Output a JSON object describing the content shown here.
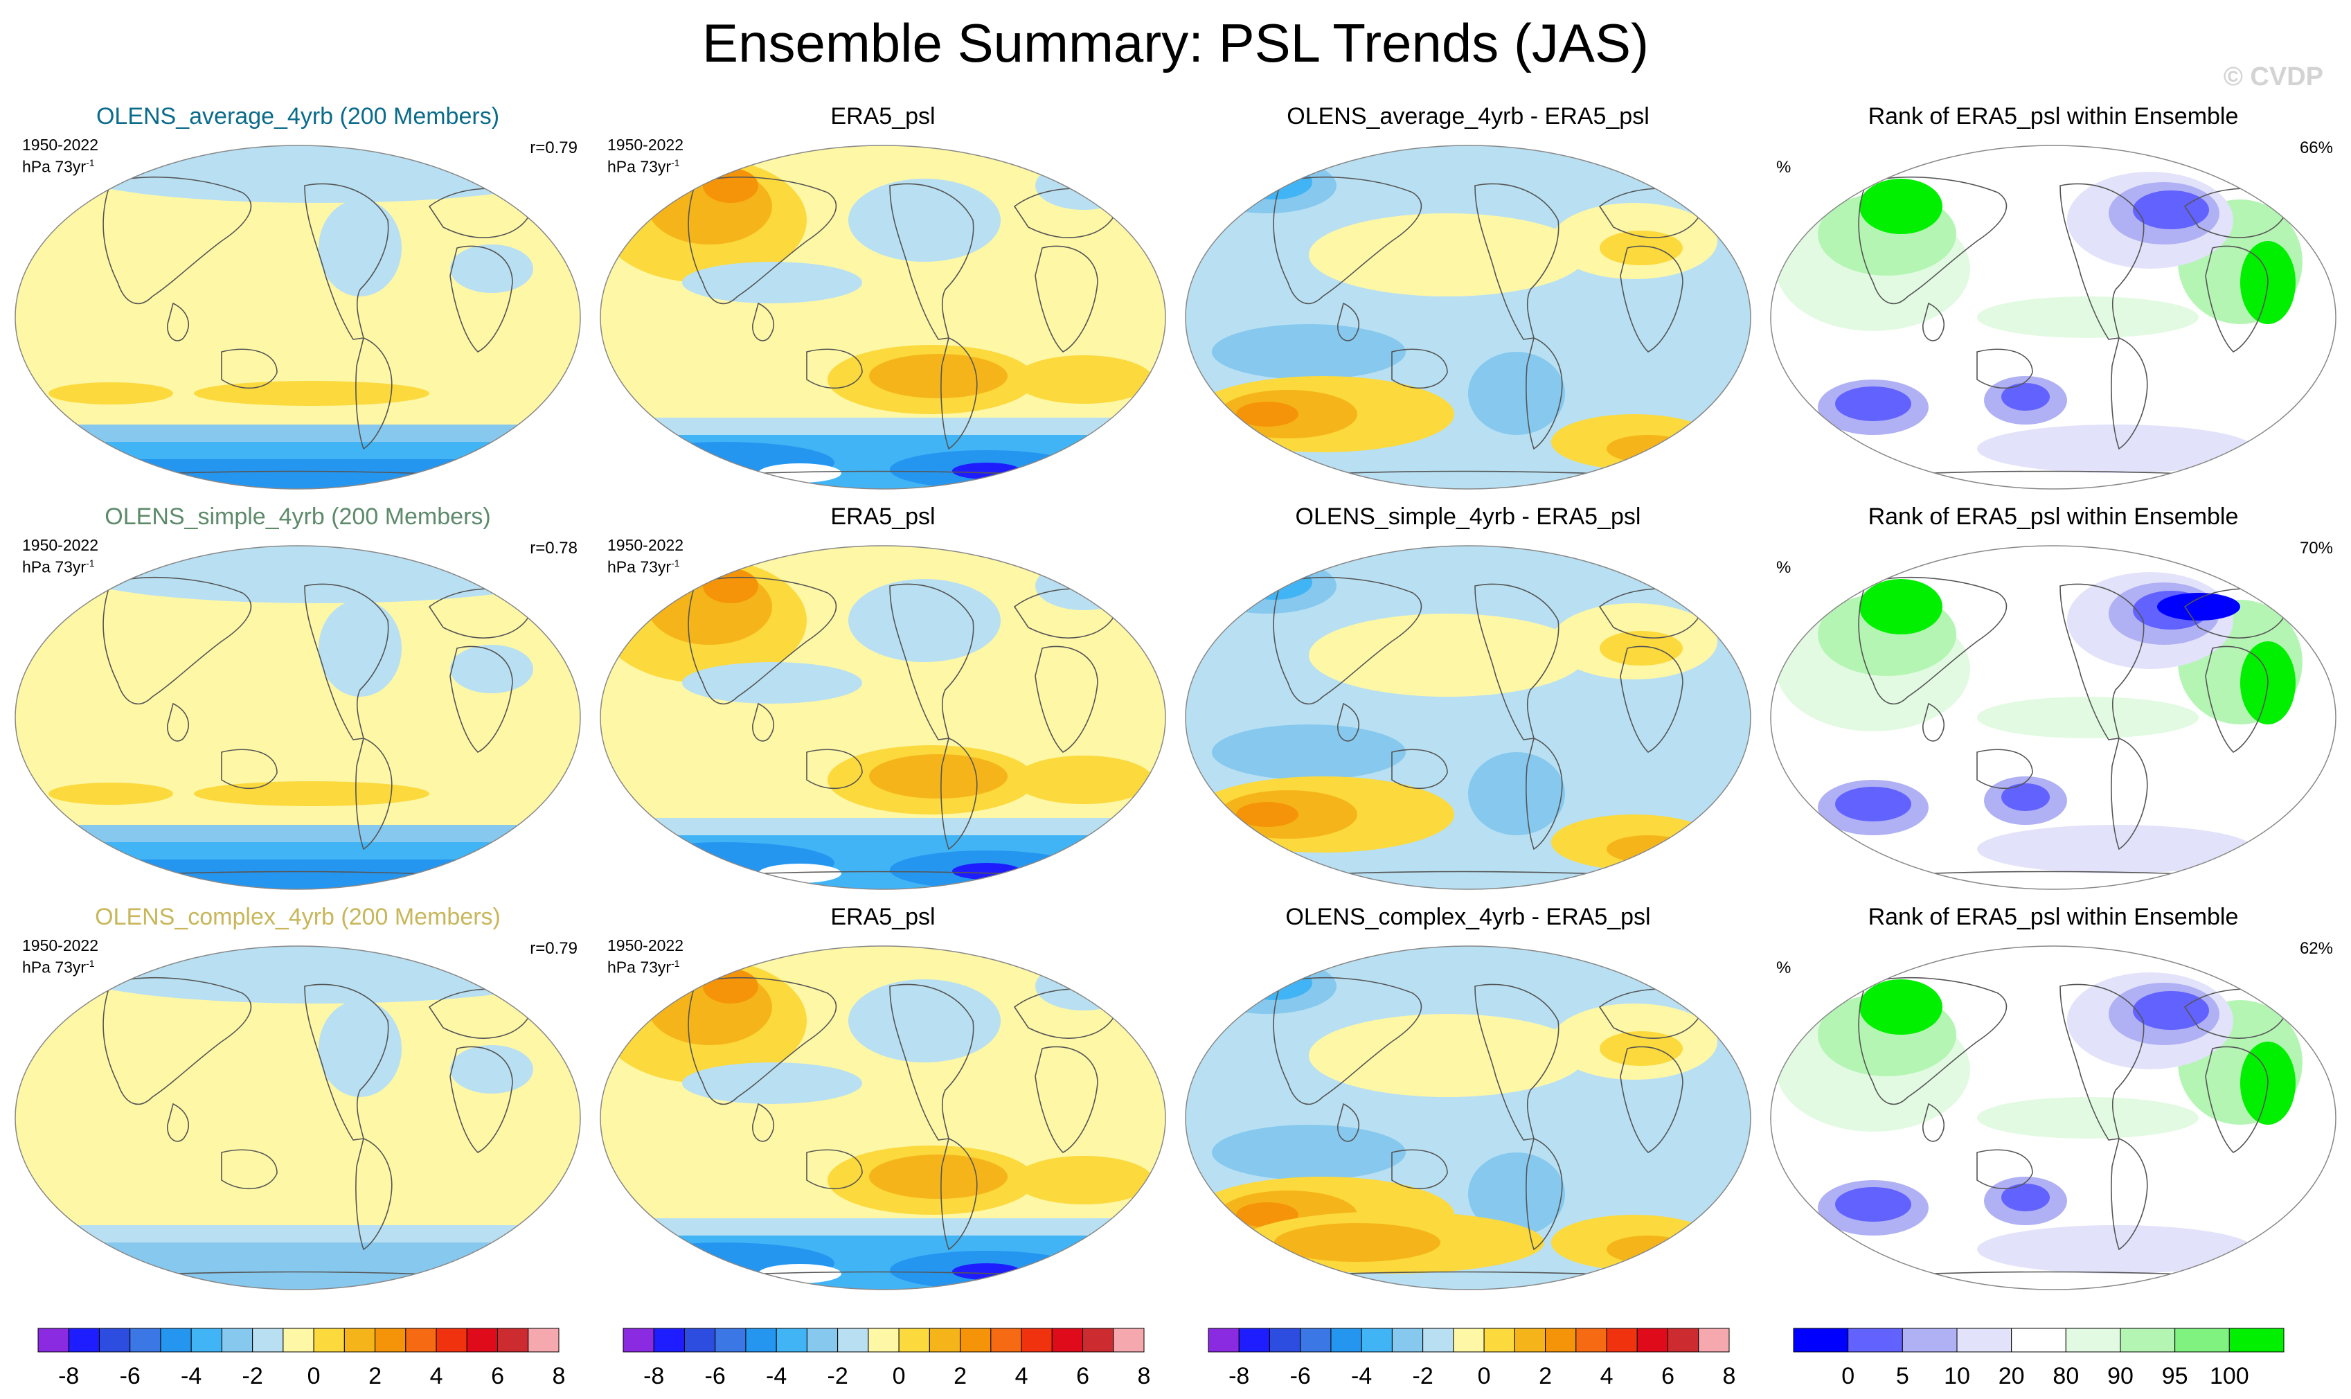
{
  "title": "Ensemble Summary: PSL Trends (JAS)",
  "copyright": "© CVDP",
  "colors": {
    "model1": "#0a6b8a",
    "model2": "#5d8a6a",
    "model3": "#c8b65a",
    "coast": "#555555"
  },
  "rows": [
    {
      "model_title": "OLENS_average_4yrb (200 Members)",
      "period": "1950-2022",
      "units": "hPa 73yr",
      "units_sup": "-1",
      "r": "r=0.79",
      "obs_title": "ERA5_psl",
      "diff_title": "OLENS_average_4yrb - ERA5_psl",
      "rank_title": "Rank of ERA5_psl within Ensemble",
      "rank_unit": "%",
      "rank_pct": "66%"
    },
    {
      "model_title": "OLENS_simple_4yrb (200 Members)",
      "period": "1950-2022",
      "units": "hPa 73yr",
      "units_sup": "-1",
      "r": "r=0.78",
      "obs_title": "ERA5_psl",
      "diff_title": "OLENS_simple_4yrb - ERA5_psl",
      "rank_title": "Rank of ERA5_psl within Ensemble",
      "rank_unit": "%",
      "rank_pct": "70%"
    },
    {
      "model_title": "OLENS_complex_4yrb (200 Members)",
      "period": "1950-2022",
      "units": "hPa 73yr",
      "units_sup": "-1",
      "r": "r=0.79",
      "obs_title": "ERA5_psl",
      "diff_title": "OLENS_complex_4yrb - ERA5_psl",
      "rank_title": "Rank of ERA5_psl within Ensemble",
      "rank_unit": "%",
      "rank_pct": "62%"
    }
  ],
  "trend_colorbar": {
    "colors": [
      "#8a2be2",
      "#1d1dff",
      "#2d4de0",
      "#3b78e6",
      "#2596f0",
      "#41b4f5",
      "#87c8ee",
      "#b8e0f2",
      "#fef7a6",
      "#fcd93c",
      "#f5b51a",
      "#f59408",
      "#f56a12",
      "#f0320f",
      "#df0b1a",
      "#cc2b30",
      "#f5a8ae"
    ],
    "labels": [
      "-8",
      "-6",
      "-4",
      "-2",
      "0",
      "2",
      "4",
      "6",
      "8"
    ]
  },
  "rank_colorbar": {
    "colors": [
      "#0000ff",
      "#6262ff",
      "#b0b0f4",
      "#e2e2fa",
      "#ffffff",
      "#e2fae2",
      "#b4f5b4",
      "#7ff27f",
      "#00f000"
    ],
    "labels": [
      "0",
      "5",
      "10",
      "20",
      "80",
      "90",
      "95",
      "100"
    ]
  }
}
